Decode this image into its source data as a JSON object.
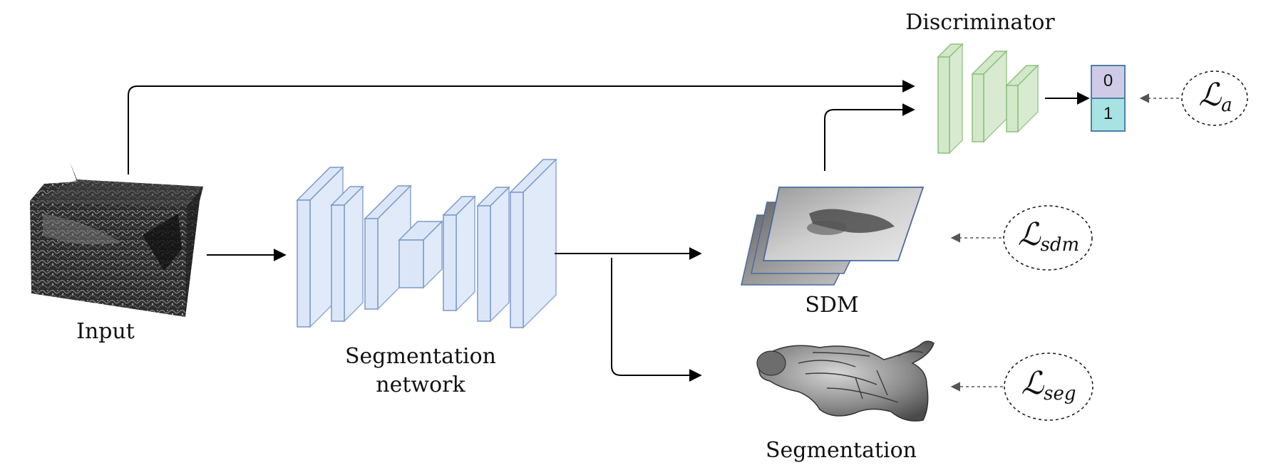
{
  "labels": {
    "input": "Input",
    "segmentation_network_line1": "Segmentation",
    "segmentation_network_line2": "network",
    "sdm": "SDM",
    "segmentation": "Segmentation",
    "discriminator": "Discriminator"
  },
  "discriminator_output": {
    "top_value": "0",
    "bottom_value": "1"
  },
  "losses": {
    "adversarial": {
      "symbol": "ℒ",
      "subscript": "a"
    },
    "sdm": {
      "symbol": "ℒ",
      "subscript": "sdm"
    },
    "seg": {
      "symbol": "ℒ",
      "subscript": "seg"
    }
  },
  "colors": {
    "encoder_fill": "#dbe7f8",
    "encoder_stroke": "#7b99c9",
    "discriminator_fill": "#d2e8c9",
    "discriminator_stroke": "#8cc07a",
    "output_zero": "#cfcbe6",
    "output_one": "#a8e3e3"
  }
}
